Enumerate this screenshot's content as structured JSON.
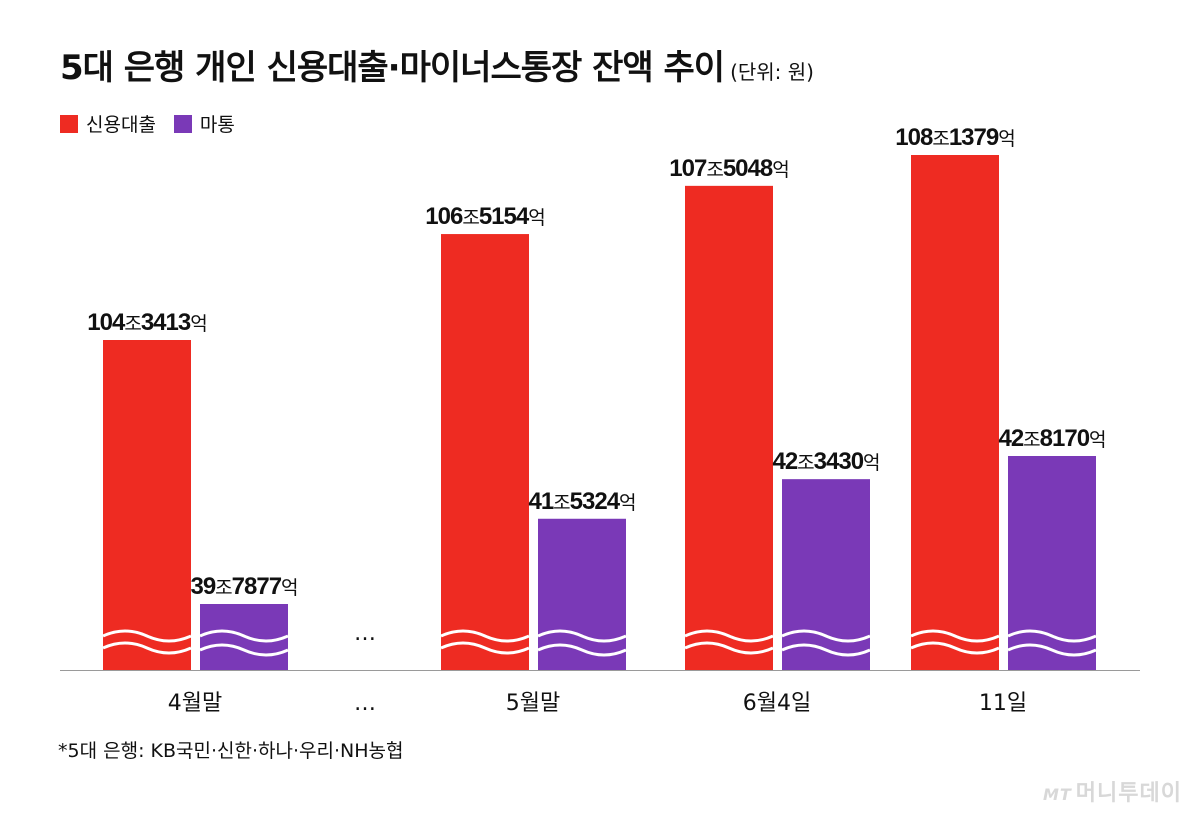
{
  "title": "5대 은행 개인 신용대출·마이너스통장 잔액 추이",
  "unit": "(단위: 원)",
  "legend": [
    {
      "label": "신용대출",
      "color": "#ee2b22"
    },
    {
      "label": "마통",
      "color": "#7a39b7"
    }
  ],
  "footnote": "*5대 은행: KB국민·신한·하나·우리·NH농협",
  "watermark": {
    "mark": "MT",
    "text": "머니투데이"
  },
  "chart_data": {
    "type": "bar",
    "categories": [
      "4월말",
      "…",
      "5월말",
      "6월4일",
      "11일"
    ],
    "series": [
      {
        "name": "신용대출",
        "color": "#ee2b22",
        "values": [
          1043413,
          null,
          1065154,
          1075048,
          1081379
        ],
        "labels": [
          {
            "main": "104",
            "jo": "조",
            "sub": "3413",
            "eok": "억"
          },
          null,
          {
            "main": "106",
            "jo": "조",
            "sub": "5154",
            "eok": "억"
          },
          {
            "main": "107",
            "jo": "조",
            "sub": "5048",
            "eok": "억"
          },
          {
            "main": "108",
            "jo": "조",
            "sub": "1379",
            "eok": "억"
          }
        ]
      },
      {
        "name": "마통",
        "color": "#7a39b7",
        "values": [
          397877,
          null,
          415324,
          423430,
          428170
        ],
        "labels": [
          {
            "main": "39",
            "jo": "조",
            "sub": "7877",
            "eok": "억"
          },
          null,
          {
            "main": "41",
            "jo": "조",
            "sub": "5324",
            "eok": "억"
          },
          {
            "main": "42",
            "jo": "조",
            "sub": "3430",
            "eok": "억"
          },
          {
            "main": "42",
            "jo": "조",
            "sub": "8170",
            "eok": "억"
          }
        ]
      }
    ],
    "value_unit": "억원",
    "axis_break": true,
    "gap_marker": "…",
    "legend_position": "top-left"
  }
}
